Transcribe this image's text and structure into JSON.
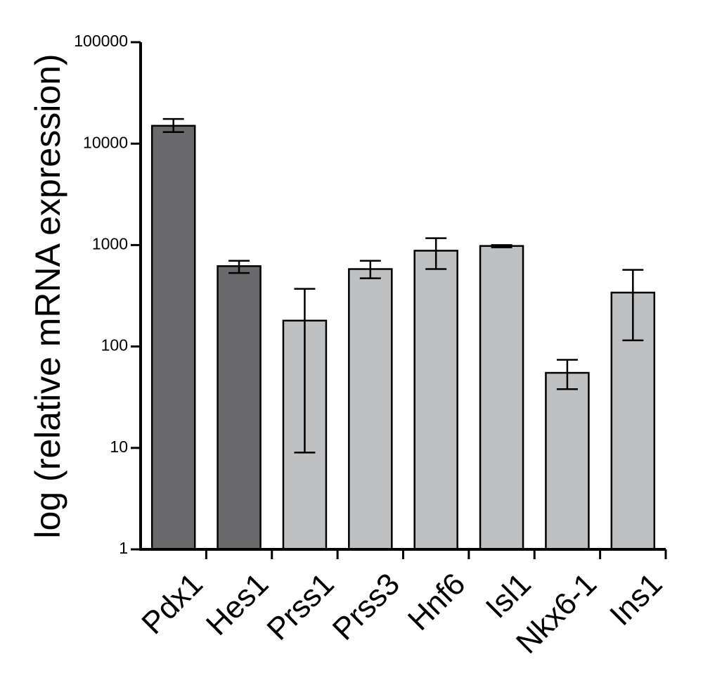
{
  "chart_data": {
    "type": "bar",
    "title": "",
    "xlabel": "",
    "ylabel": "log (relative mRNA expression)",
    "yscale": "log",
    "ylim": [
      1,
      100000
    ],
    "yticks": [
      1,
      10,
      100,
      1000,
      10000,
      100000
    ],
    "ytick_labels": [
      "1",
      "10",
      "100",
      "1000",
      "10000",
      "100000"
    ],
    "grid": false,
    "legend": "none",
    "categories": [
      "Pdx1",
      "Hes1",
      "Prss1",
      "Prss3",
      "Hnf6",
      "Isl1",
      "Nkx6-1",
      "Ins1"
    ],
    "values": [
      15000,
      620,
      180,
      580,
      880,
      980,
      55,
      340
    ],
    "error_low": [
      13000,
      530,
      9,
      470,
      580,
      950,
      38,
      115
    ],
    "error_high": [
      17500,
      700,
      370,
      700,
      1170,
      1000,
      74,
      570
    ],
    "colors": [
      "#6a6a6c",
      "#6a6a6c",
      "#bfc0c2",
      "#bfc0c2",
      "#bfc0c2",
      "#bfc0c2",
      "#bfc0c2",
      "#bfc0c2"
    ]
  }
}
